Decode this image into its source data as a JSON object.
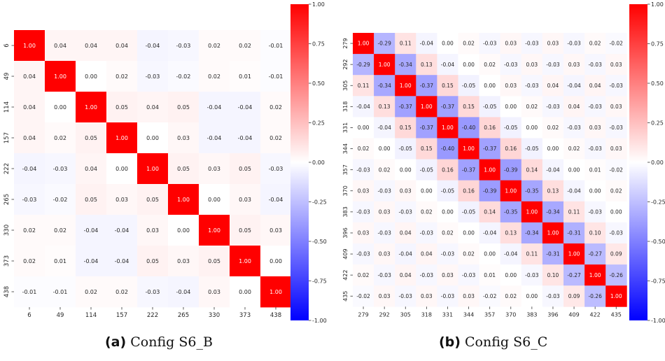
{
  "chart_data": [
    {
      "type": "heatmap",
      "caption_label": "(a)",
      "caption_text": "Config S6_B",
      "labels": [
        "6",
        "49",
        "114",
        "157",
        "222",
        "265",
        "330",
        "373",
        "438"
      ],
      "values": [
        [
          1.0,
          0.04,
          0.04,
          0.04,
          -0.04,
          -0.03,
          0.02,
          0.02,
          -0.01
        ],
        [
          0.04,
          1.0,
          -0.0,
          0.02,
          -0.03,
          -0.02,
          0.02,
          0.01,
          -0.01
        ],
        [
          0.04,
          -0.0,
          1.0,
          0.05,
          0.04,
          0.05,
          -0.04,
          -0.04,
          0.02
        ],
        [
          0.04,
          0.02,
          0.05,
          1.0,
          0.0,
          0.03,
          -0.04,
          -0.04,
          0.02
        ],
        [
          -0.04,
          -0.03,
          0.04,
          0.0,
          1.0,
          0.05,
          0.03,
          0.05,
          -0.03
        ],
        [
          -0.03,
          -0.02,
          0.05,
          0.03,
          0.05,
          1.0,
          -0.0,
          0.03,
          -0.04
        ],
        [
          0.02,
          0.02,
          -0.04,
          -0.04,
          0.03,
          -0.0,
          1.0,
          0.05,
          0.03
        ],
        [
          0.02,
          0.01,
          -0.04,
          -0.04,
          0.05,
          0.03,
          0.05,
          1.0,
          -0.0
        ],
        [
          -0.01,
          -0.01,
          0.02,
          0.02,
          -0.03,
          -0.04,
          0.03,
          -0.0,
          1.0
        ]
      ],
      "vmin": -1.0,
      "vmax": 1.0,
      "colormap": "bwr",
      "colorbar_ticks": [
        "1.00",
        "0.75",
        "0.50",
        "0.25",
        "0.00",
        "-0.25",
        "-0.50",
        "-0.75",
        "-1.00"
      ]
    },
    {
      "type": "heatmap",
      "caption_label": "(b)",
      "caption_text": "Config S6_C",
      "labels": [
        "279",
        "292",
        "305",
        "318",
        "331",
        "344",
        "357",
        "370",
        "383",
        "396",
        "409",
        "422",
        "435"
      ],
      "values": [
        [
          1.0,
          -0.29,
          0.11,
          -0.04,
          0.0,
          0.02,
          -0.03,
          0.03,
          -0.03,
          0.03,
          -0.03,
          0.02,
          -0.02
        ],
        [
          -0.29,
          1.0,
          -0.34,
          0.13,
          -0.04,
          0.0,
          0.02,
          -0.03,
          0.03,
          -0.03,
          0.03,
          -0.03,
          0.03
        ],
        [
          0.11,
          -0.34,
          1.0,
          -0.37,
          0.15,
          -0.05,
          0.0,
          0.03,
          -0.03,
          0.04,
          -0.04,
          0.04,
          -0.03
        ],
        [
          -0.04,
          0.13,
          -0.37,
          1.0,
          -0.37,
          0.15,
          -0.05,
          0.0,
          0.02,
          -0.03,
          0.04,
          -0.03,
          0.03
        ],
        [
          0.0,
          -0.04,
          0.15,
          -0.37,
          1.0,
          -0.4,
          0.16,
          -0.05,
          0.0,
          0.02,
          -0.03,
          0.03,
          -0.03
        ],
        [
          0.02,
          0.0,
          -0.05,
          0.15,
          -0.4,
          1.0,
          -0.37,
          0.16,
          -0.05,
          0.0,
          0.02,
          -0.03,
          0.03
        ],
        [
          -0.03,
          0.02,
          0.0,
          -0.05,
          0.16,
          -0.37,
          1.0,
          -0.39,
          0.14,
          -0.04,
          0.0,
          0.01,
          -0.02
        ],
        [
          0.03,
          -0.03,
          0.03,
          0.0,
          -0.05,
          0.16,
          -0.39,
          1.0,
          -0.35,
          0.13,
          -0.04,
          -0.0,
          0.02
        ],
        [
          -0.03,
          0.03,
          -0.03,
          0.02,
          0.0,
          -0.05,
          0.14,
          -0.35,
          1.0,
          -0.34,
          0.11,
          -0.03,
          -0.0
        ],
        [
          0.03,
          -0.03,
          0.04,
          -0.03,
          0.02,
          0.0,
          -0.04,
          0.13,
          -0.34,
          1.0,
          -0.31,
          0.1,
          -0.03
        ],
        [
          -0.03,
          0.03,
          -0.04,
          0.04,
          -0.03,
          0.02,
          0.0,
          -0.04,
          0.11,
          -0.31,
          1.0,
          -0.27,
          0.09
        ],
        [
          0.02,
          -0.03,
          0.04,
          -0.03,
          0.03,
          -0.03,
          0.01,
          -0.0,
          -0.03,
          0.1,
          -0.27,
          1.0,
          -0.26
        ],
        [
          -0.02,
          0.03,
          -0.03,
          0.03,
          -0.03,
          0.03,
          -0.02,
          0.02,
          -0.0,
          -0.03,
          0.09,
          -0.26,
          1.0
        ]
      ],
      "vmin": -1.0,
      "vmax": 1.0,
      "colormap": "bwr",
      "colorbar_ticks": [
        "1.00",
        "0.75",
        "0.50",
        "0.25",
        "0.00",
        "-0.25",
        "-0.50",
        "-0.75",
        "-1.00"
      ]
    }
  ]
}
